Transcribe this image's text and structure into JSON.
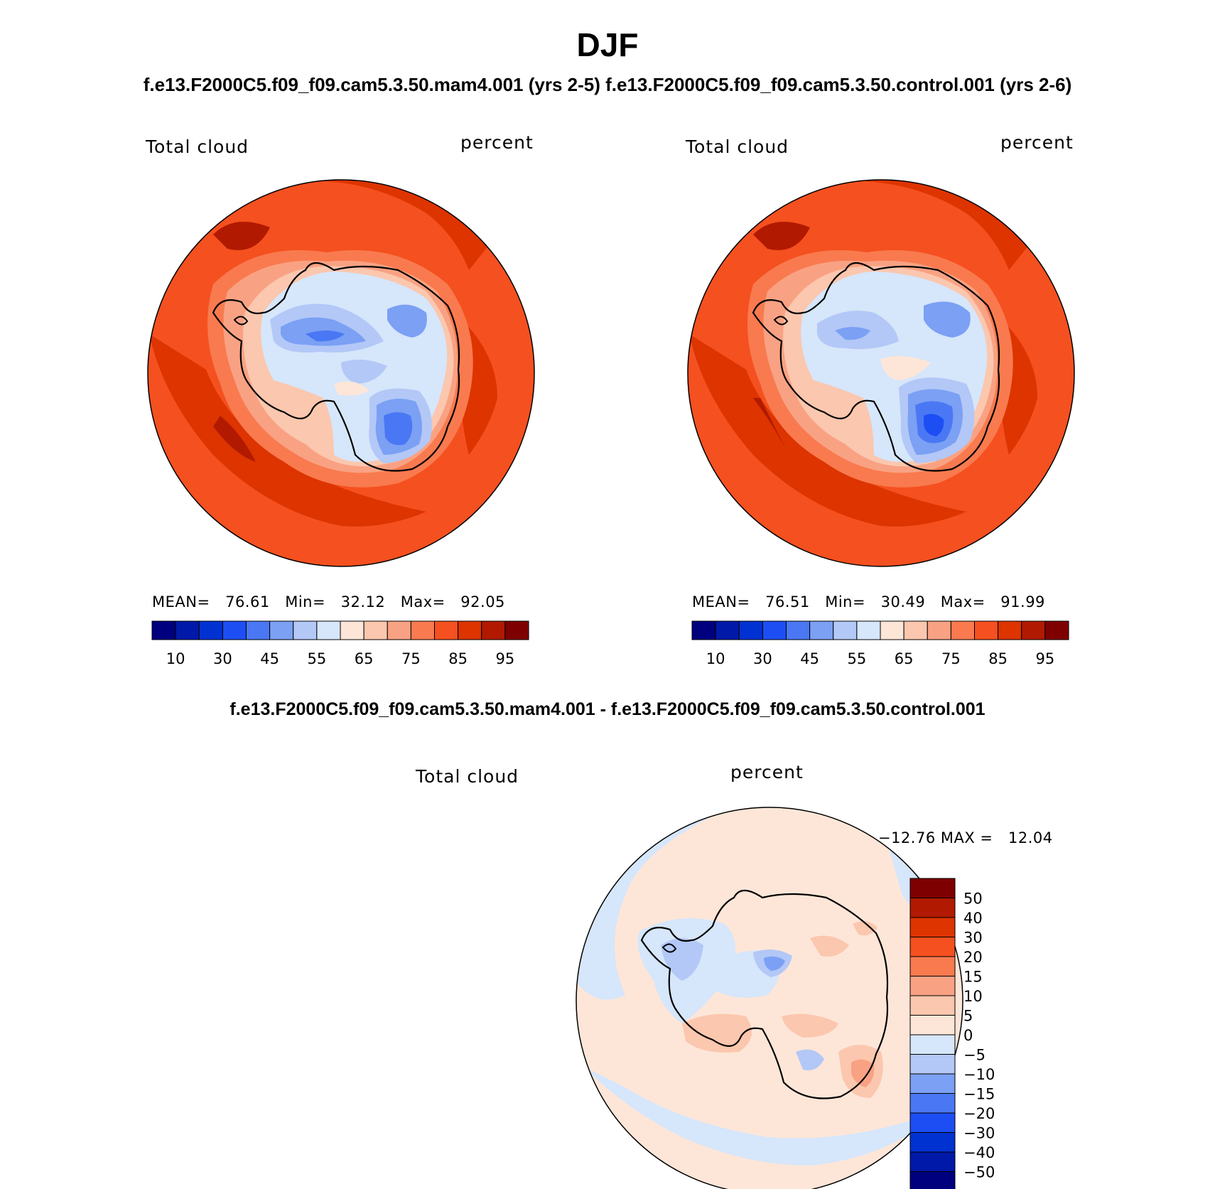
{
  "title": "DJF",
  "case_line": "f.e13.F2000C5.f09_f09.cam5.3.50.mam4.001 (yrs 2-5) f.e13.F2000C5.f09_f09.cam5.3.50.control.001 (yrs 2-6)",
  "diff_title": "f.e13.F2000C5.f09_f09.cam5.3.50.mam4.001 - f.e13.F2000C5.f09_f09.cam5.3.50.control.001",
  "panels": [
    {
      "variable": "Total cloud",
      "units": "percent",
      "stats": "MEAN=   76.61   Min=   32.12   Max=   92.05",
      "colorbar": {
        "colors": [
          "#00007f",
          "#0019a8",
          "#0032d2",
          "#1d4ef4",
          "#4a78f4",
          "#7ba0f4",
          "#b3c8f7",
          "#d6e6fb",
          "#fde6d8",
          "#fbc7ae",
          "#f9a283",
          "#f97a4f",
          "#f5501f",
          "#dd3400",
          "#b11a00",
          "#7f0000"
        ],
        "ticks": [
          "10",
          "30",
          "45",
          "55",
          "65",
          "75",
          "85",
          "95"
        ]
      }
    },
    {
      "variable": "Total cloud",
      "units": "percent",
      "stats": "MEAN=   76.51   Min=   30.49   Max=   91.99",
      "colorbar": {
        "colors": [
          "#00007f",
          "#0019a8",
          "#0032d2",
          "#1d4ef4",
          "#4a78f4",
          "#7ba0f4",
          "#b3c8f7",
          "#d6e6fb",
          "#fde6d8",
          "#fbc7ae",
          "#f9a283",
          "#f97a4f",
          "#f5501f",
          "#dd3400",
          "#b11a00",
          "#7f0000"
        ],
        "ticks": [
          "10",
          "30",
          "45",
          "55",
          "65",
          "75",
          "85",
          "95"
        ]
      }
    }
  ],
  "difference": {
    "variable": "Total cloud",
    "units": "percent",
    "stats": "MIN = −12.76 MAX =   12.04",
    "colorbar": {
      "colors": [
        "#7f0000",
        "#b11a00",
        "#dd3400",
        "#f5501f",
        "#f97a4f",
        "#f9a283",
        "#fbc7ae",
        "#fde6d8",
        "#d6e6fb",
        "#b3c8f7",
        "#7ba0f4",
        "#4a78f4",
        "#1d4ef4",
        "#0032d2",
        "#0019a8",
        "#00007f"
      ],
      "ticks": [
        "50",
        "40",
        "30",
        "20",
        "15",
        "10",
        "5",
        "0",
        "−5",
        "−10",
        "−15",
        "−20",
        "−30",
        "−40",
        "−50"
      ]
    }
  }
}
